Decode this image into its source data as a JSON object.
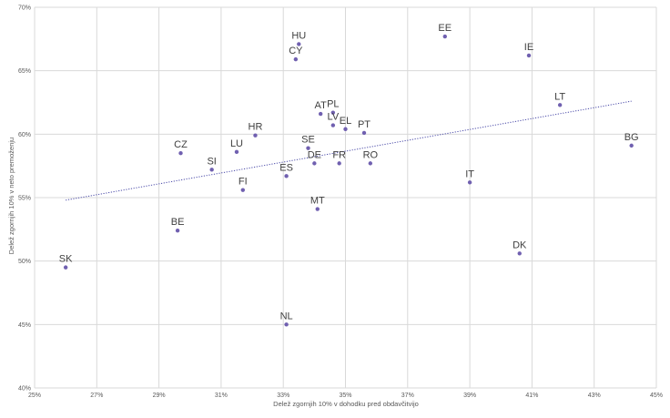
{
  "chart_data": {
    "type": "scatter",
    "title": "",
    "xlabel": "Delež zgornjih 10% v dohodku pred obdavčitvijo",
    "ylabel": "Delež zgornjih 10% v neto premoženju",
    "xlim": [
      25,
      45
    ],
    "ylim": [
      40,
      70
    ],
    "x_ticks": [
      "25%",
      "27%",
      "29%",
      "31%",
      "33%",
      "35%",
      "37%",
      "39%",
      "41%",
      "43%",
      "45%"
    ],
    "y_ticks": [
      "40%",
      "45%",
      "50%",
      "55%",
      "60%",
      "65%",
      "70%"
    ],
    "grid": "horizontal and vertical",
    "trendline": {
      "style": "dotted linear",
      "x": [
        26.0,
        44.2
      ],
      "y": [
        54.8,
        62.6
      ]
    },
    "marker_color": "#7060b0",
    "trendline_color": "#4a4aa8",
    "points": [
      {
        "label": "SK",
        "x": 26.0,
        "y": 49.5
      },
      {
        "label": "BE",
        "x": 29.6,
        "y": 52.4
      },
      {
        "label": "CZ",
        "x": 29.7,
        "y": 58.5
      },
      {
        "label": "SI",
        "x": 30.7,
        "y": 57.2
      },
      {
        "label": "LU",
        "x": 31.5,
        "y": 58.6
      },
      {
        "label": "FI",
        "x": 31.7,
        "y": 55.6
      },
      {
        "label": "HR",
        "x": 32.1,
        "y": 59.9
      },
      {
        "label": "NL",
        "x": 33.1,
        "y": 45.0
      },
      {
        "label": "ES",
        "x": 33.1,
        "y": 56.7
      },
      {
        "label": "HU",
        "x": 33.5,
        "y": 67.1
      },
      {
        "label": "CY",
        "x": 33.4,
        "y": 65.9
      },
      {
        "label": "SE",
        "x": 33.8,
        "y": 58.9
      },
      {
        "label": "DE",
        "x": 34.0,
        "y": 57.7
      },
      {
        "label": "MT",
        "x": 34.1,
        "y": 54.1
      },
      {
        "label": "AT",
        "x": 34.2,
        "y": 61.6
      },
      {
        "label": "PL",
        "x": 34.6,
        "y": 61.7
      },
      {
        "label": "LV",
        "x": 34.6,
        "y": 60.7
      },
      {
        "label": "FR",
        "x": 34.8,
        "y": 57.7
      },
      {
        "label": "EL",
        "x": 35.0,
        "y": 60.4
      },
      {
        "label": "PT",
        "x": 35.6,
        "y": 60.1
      },
      {
        "label": "RO",
        "x": 35.8,
        "y": 57.7
      },
      {
        "label": "EE",
        "x": 38.2,
        "y": 67.7
      },
      {
        "label": "IT",
        "x": 39.0,
        "y": 56.2
      },
      {
        "label": "DK",
        "x": 40.6,
        "y": 50.6
      },
      {
        "label": "IE",
        "x": 40.9,
        "y": 66.2
      },
      {
        "label": "LT",
        "x": 41.9,
        "y": 62.3
      },
      {
        "label": "BG",
        "x": 44.2,
        "y": 59.1
      }
    ]
  }
}
